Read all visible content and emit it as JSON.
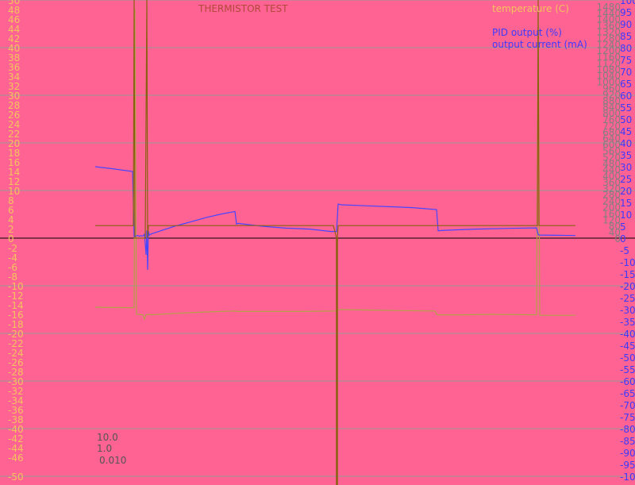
{
  "title": "THERMISTOR TEST",
  "legend": [
    "temperature (C)",
    "PID output (%)",
    "output current (mA)"
  ],
  "scale_labels": [
    "10.0",
    "1.0",
    "0.010"
  ],
  "colors": {
    "background": "#ff6393",
    "grid": "#999999",
    "axis": "#000000",
    "left_ticks": "#f5c35c",
    "mid_ticks": "#808080",
    "right_ticks": "#3b3bff",
    "temperature": "#b5a04a",
    "pid": "#4646ff",
    "current": "#8a6010",
    "current_low": "#4f7a2c",
    "title": "#b04a3a",
    "legend_temp": "#f5c35c",
    "legend_blue": "#3b3bff",
    "scale_text": "#555555"
  },
  "chart_data": {
    "type": "line",
    "title": "THERMISTOR TEST",
    "x_range": [
      0,
      800
    ],
    "axes": {
      "left": {
        "ylim": [
          -50,
          50
        ],
        "ticks": [
          50,
          48,
          46,
          44,
          42,
          40,
          38,
          36,
          34,
          32,
          30,
          28,
          26,
          24,
          22,
          20,
          18,
          16,
          14,
          12,
          10,
          8,
          6,
          4,
          2,
          0,
          -2,
          -4,
          -6,
          -8,
          -10,
          -12,
          -14,
          -16,
          -18,
          -20,
          -22,
          -24,
          -26,
          -28,
          -30,
          -32,
          -34,
          -36,
          -38,
          -40,
          -42,
          -44,
          -46,
          -50
        ]
      },
      "middle": {
        "ylim": [
          0,
          1520
        ],
        "ticks": [
          1480,
          1440,
          1400,
          1360,
          1320,
          1280,
          1240,
          1200,
          1160,
          1120,
          1080,
          1040,
          1000,
          960,
          920,
          880,
          840,
          800,
          760,
          720,
          680,
          640,
          600,
          560,
          520,
          480,
          440,
          400,
          360,
          320,
          280,
          240,
          200,
          160,
          120,
          80,
          40,
          0
        ]
      },
      "right": {
        "ylim": [
          -100,
          100
        ],
        "ticks": [
          100,
          95,
          90,
          85,
          80,
          75,
          70,
          65,
          60,
          55,
          50,
          45,
          40,
          35,
          30,
          25,
          20,
          15,
          10,
          5,
          0,
          -5,
          -10,
          -15,
          -20,
          -25,
          -30,
          -35,
          -40,
          -45,
          -50,
          -55,
          -60,
          -65,
          -70,
          -75,
          -80,
          -85,
          -90,
          -95,
          -100
        ]
      }
    },
    "grid": true,
    "series": [
      {
        "name": "temperature (C)",
        "axis": "left",
        "x": [
          120,
          167,
          169,
          170,
          172,
          180,
          182,
          184,
          186,
          188,
          190,
          220,
          260,
          296,
          298,
          300,
          340,
          380,
          420,
          424,
          425,
          426,
          430,
          470,
          500,
          548,
          550,
          552,
          580,
          620,
          676,
          678,
          680,
          700,
          725
        ],
        "y": [
          -14.5,
          -14.6,
          -14.6,
          48,
          -16,
          -16.1,
          -17,
          -16.1,
          -16,
          -16,
          -16.1,
          -15.8,
          -15.5,
          -15.3,
          -15.4,
          -15.4,
          -15.4,
          -15.4,
          -15.3,
          -15.3,
          -15.1,
          -15.0,
          -15.0,
          -15.1,
          -15.2,
          -15.3,
          -16.0,
          -16.1,
          -16.1,
          -16.0,
          -16.1,
          48,
          -16.2,
          -16.2,
          -16.2
        ]
      },
      {
        "name": "PID output (%)",
        "axis": "right",
        "x": [
          120,
          140,
          167,
          169,
          171,
          173,
          175,
          177,
          180,
          182,
          184,
          185,
          186,
          187,
          188,
          190,
          200,
          220,
          240,
          260,
          280,
          296,
          298,
          300,
          330,
          360,
          390,
          417,
          424,
          426,
          430,
          460,
          490,
          520,
          550,
          552,
          560,
          600,
          640,
          676,
          678,
          680,
          700,
          725
        ],
        "y": [
          30.0,
          29.2,
          28.0,
          0.6,
          0.8,
          1.2,
          0.8,
          1.0,
          0.9,
          1.6,
          -7.0,
          3.2,
          -13.3,
          2.9,
          1.2,
          1.7,
          2.8,
          5.0,
          6.8,
          8.7,
          10.2,
          11.2,
          5.9,
          6.2,
          5.0,
          4.2,
          3.8,
          2.8,
          2.8,
          14.3,
          14.0,
          13.6,
          13.2,
          12.8,
          12.0,
          3.1,
          3.3,
          3.8,
          4.1,
          4.3,
          1.4,
          1.3,
          1.2,
          1.1
        ]
      },
      {
        "name": "output current (mA)",
        "axis": "middle",
        "x": [
          120,
          168,
          169,
          170,
          183,
          185,
          186,
          187,
          188,
          296,
          297,
          298,
          300,
          350,
          420,
          424,
          425,
          426,
          430,
          548,
          549,
          550,
          551,
          552,
          676,
          677,
          678,
          679,
          700,
          725
        ],
        "y": [
          80,
          80,
          1520,
          0,
          0,
          1520,
          0,
          80,
          80,
          80,
          80,
          80,
          80,
          80,
          80,
          0,
          0,
          80,
          80,
          80,
          80,
          80,
          80,
          80,
          80,
          80,
          1520,
          80,
          80,
          80
        ]
      }
    ]
  }
}
